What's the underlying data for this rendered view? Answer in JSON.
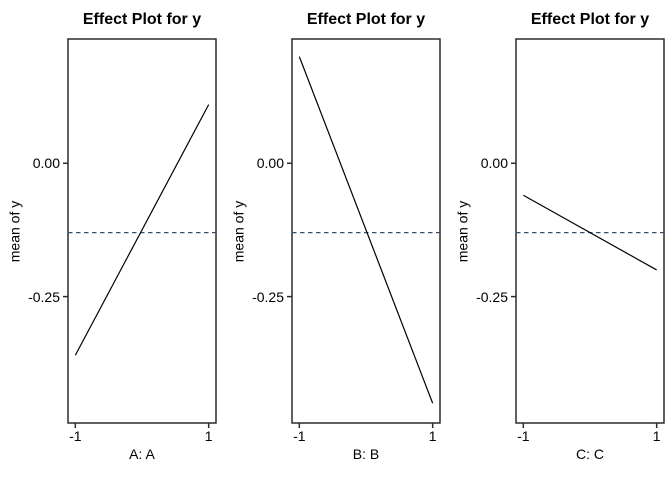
{
  "figure": {
    "background": "#ffffff",
    "colors": {
      "line": "#000000",
      "mean_dashed_line": "#36506B",
      "box_border": "#2b2b2b",
      "text": "#000000"
    }
  },
  "chart_data": [
    {
      "type": "line",
      "title": "Effect Plot for y",
      "xlabel": "A: A",
      "ylabel": "mean of y",
      "x": [
        -1,
        1
      ],
      "y": [
        -0.36,
        0.11
      ],
      "grand_mean_dashed": -0.13,
      "xlim": [
        -1.11,
        1.11
      ],
      "ylim": [
        -0.487,
        0.233
      ],
      "xticks": [
        -1,
        1
      ],
      "xtick_labels": [
        "-1",
        "1"
      ],
      "yticks": [
        0,
        -0.25
      ],
      "ytick_labels": [
        "0.00",
        "-0.25"
      ],
      "grid": false,
      "legend": null
    },
    {
      "type": "line",
      "title": "Effect Plot for y",
      "xlabel": "B: B",
      "ylabel": "mean of y",
      "x": [
        -1,
        1
      ],
      "y": [
        0.2,
        -0.45
      ],
      "grand_mean_dashed": -0.13,
      "xlim": [
        -1.11,
        1.11
      ],
      "ylim": [
        -0.487,
        0.233
      ],
      "xticks": [
        -1,
        1
      ],
      "xtick_labels": [
        "-1",
        "1"
      ],
      "yticks": [
        0,
        -0.25
      ],
      "ytick_labels": [
        "0.00",
        "-0.25"
      ],
      "grid": false,
      "legend": null
    },
    {
      "type": "line",
      "title": "Effect Plot for y",
      "xlabel": "C: C",
      "ylabel": "mean of y",
      "x": [
        -1,
        1
      ],
      "y": [
        -0.06,
        -0.2
      ],
      "grand_mean_dashed": -0.13,
      "xlim": [
        -1.11,
        1.11
      ],
      "ylim": [
        -0.487,
        0.233
      ],
      "xticks": [
        -1,
        1
      ],
      "xtick_labels": [
        "-1",
        "1"
      ],
      "yticks": [
        0,
        -0.25
      ],
      "ytick_labels": [
        "0.00",
        "-0.25"
      ],
      "grid": false,
      "legend": null
    }
  ]
}
